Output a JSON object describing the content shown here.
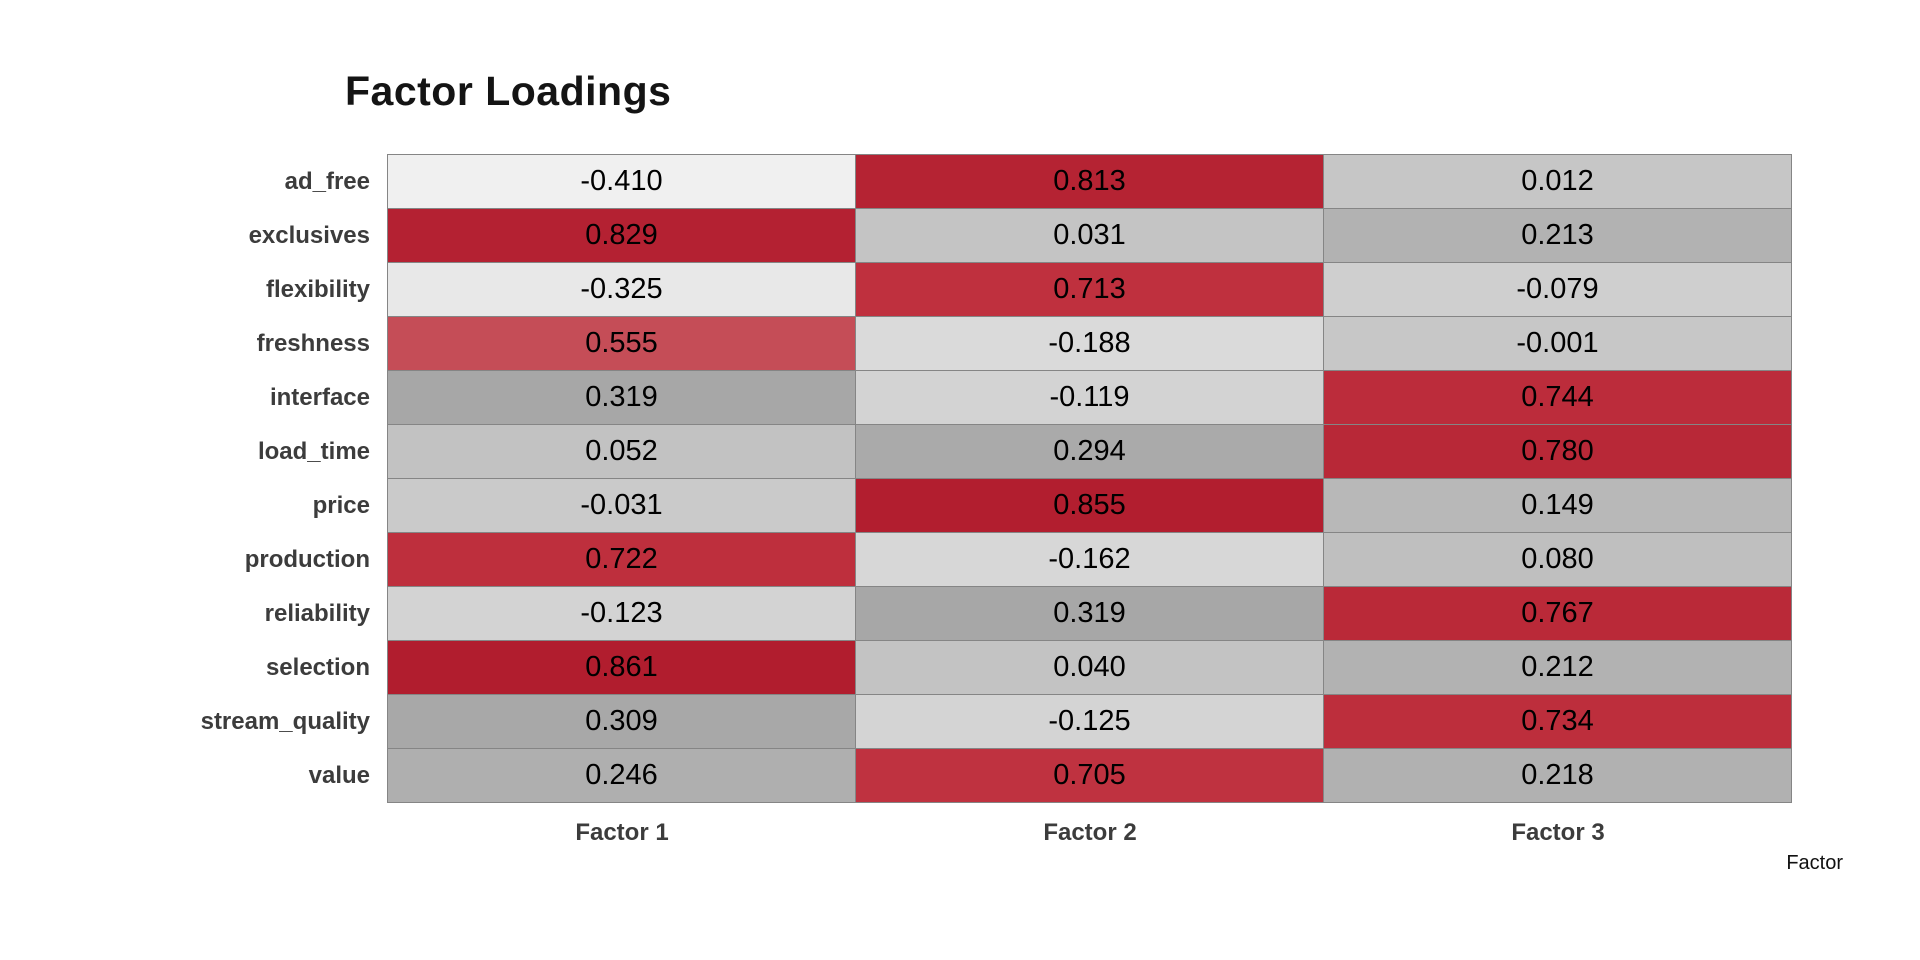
{
  "title": "Factor Loadings",
  "axis_label": "Factor",
  "chart_data": {
    "type": "heatmap",
    "title": "Factor Loadings",
    "xlabel": "Factor",
    "columns": [
      "Factor 1",
      "Factor 2",
      "Factor 3"
    ],
    "rows": [
      "ad_free",
      "exclusives",
      "flexibility",
      "freshness",
      "interface",
      "load_time",
      "price",
      "production",
      "reliability",
      "selection",
      "stream_quality",
      "value"
    ],
    "values": [
      [
        -0.41,
        0.813,
        0.012
      ],
      [
        0.829,
        0.031,
        0.213
      ],
      [
        -0.325,
        0.713,
        -0.079
      ],
      [
        0.555,
        -0.188,
        -0.001
      ],
      [
        0.319,
        -0.119,
        0.744
      ],
      [
        0.052,
        0.294,
        0.78
      ],
      [
        -0.031,
        0.855,
        0.149
      ],
      [
        0.722,
        -0.162,
        0.08
      ],
      [
        -0.123,
        0.319,
        0.767
      ],
      [
        0.861,
        0.04,
        0.212
      ],
      [
        0.309,
        -0.125,
        0.734
      ],
      [
        0.246,
        0.705,
        0.218
      ]
    ],
    "value_decimals": 3,
    "color_scale": {
      "min": -0.41,
      "max": 0.861,
      "stops": [
        {
          "t": 0.0,
          "rgb": [
            240,
            240,
            240
          ]
        },
        {
          "t": 0.6,
          "rgb": [
            164,
            164,
            164
          ]
        },
        {
          "t": 0.76,
          "rgb": [
            197,
            77,
            87
          ]
        },
        {
          "t": 0.88,
          "rgb": [
            191,
            49,
            63
          ]
        },
        {
          "t": 1.0,
          "rgb": [
            177,
            29,
            46
          ]
        }
      ]
    },
    "cell_text_color": "#000000",
    "grid_border_color": "#858585",
    "legend": "off",
    "grid": "off"
  }
}
